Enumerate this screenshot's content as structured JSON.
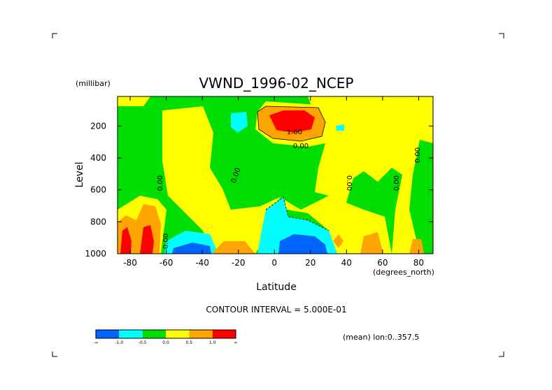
{
  "chart_data": {
    "type": "contour",
    "title": "VWND_1996-02_NCEP",
    "x_label": "Latitude",
    "x_units": "(degrees_north)",
    "y_label": "Level",
    "y_units": "(millibar)",
    "xlim": [
      -87,
      88
    ],
    "ylim": [
      1000,
      15
    ],
    "xticks": [
      -80,
      -60,
      -40,
      -20,
      0,
      20,
      40,
      60,
      80
    ],
    "yticks": [
      200,
      400,
      600,
      800,
      1000
    ],
    "contour_interval_note": "CONTOUR INTERVAL = 5.000E-01",
    "average_note": "(mean) lon:0..357.5",
    "contour_labels": [
      "1.00",
      "0.00",
      "0.00",
      "0.00",
      "0.00",
      "0.00",
      "0.00",
      "0.00"
    ],
    "colorbar": {
      "labels": [
        "-∞",
        "-1.0",
        "-0.5",
        "0.0",
        "0.5",
        "1.0",
        "∞"
      ],
      "colors": [
        "#0064ff",
        "#00ffff",
        "#00dd00",
        "#ffff00",
        "#ffa500",
        "#ff0000"
      ]
    }
  }
}
